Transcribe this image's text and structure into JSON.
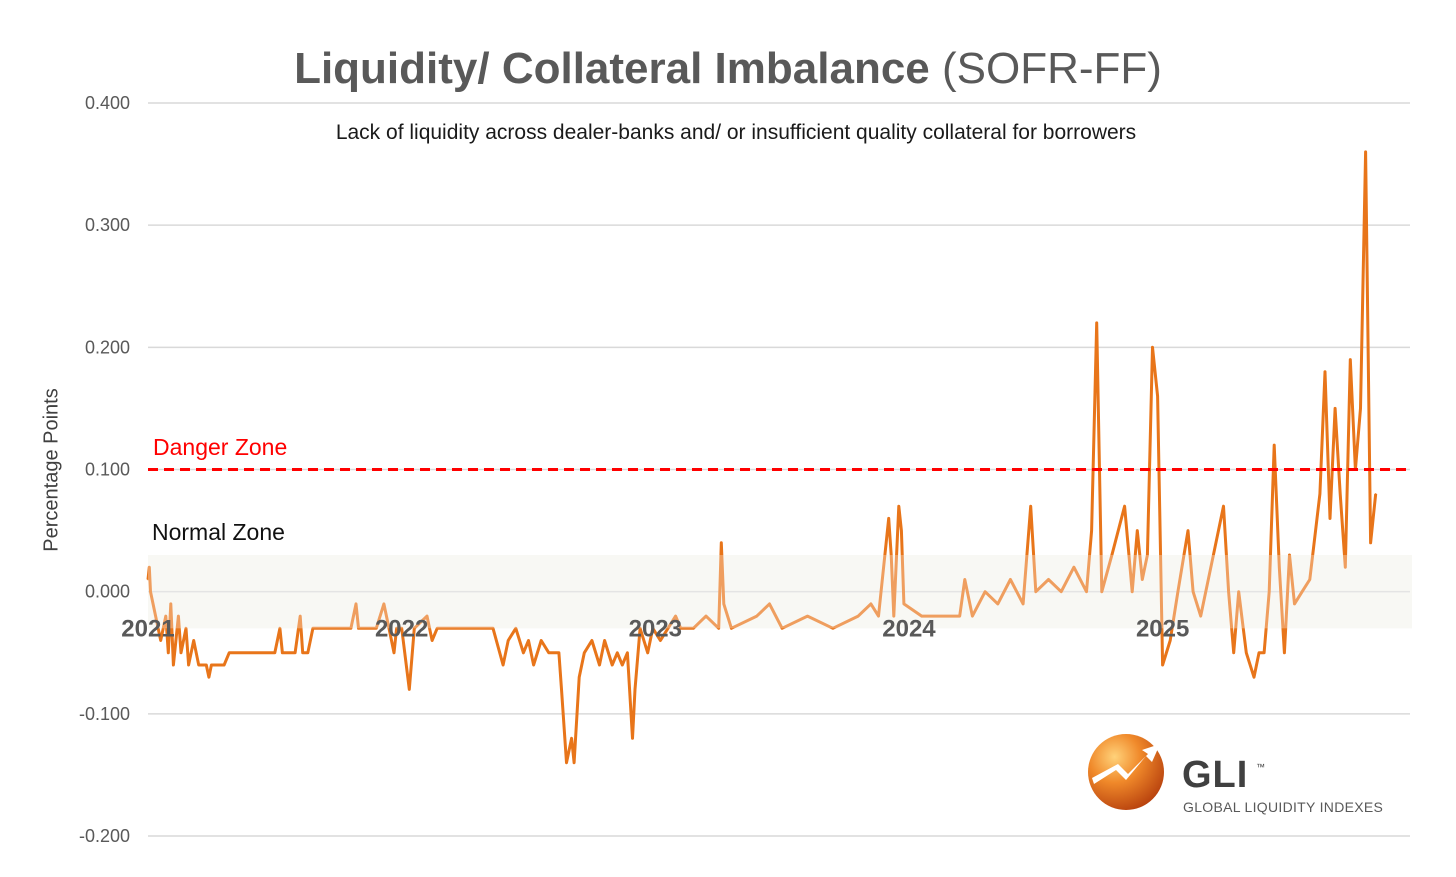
{
  "header": {
    "title_main": "Liquidity/ Collateral Imbalance",
    "title_suffix": "(SOFR-FF)",
    "subtitle": "Lack of liquidity across dealer-banks and/ or insufficient quality collateral for borrowers"
  },
  "annotations": {
    "danger_label": "Danger Zone",
    "normal_label": "Normal Zone"
  },
  "logo": {
    "name": "GLI",
    "tm": "™",
    "tagline": "GLOBAL LIQUIDITY INDEXES"
  },
  "colors": {
    "line": "#e8751a",
    "line_light": "#efa766",
    "danger": "#ff0000",
    "normal_zone": "#f5f5ef",
    "grid": "#d9d9d9"
  },
  "chart_data": {
    "type": "line",
    "title": "Liquidity/ Collateral Imbalance (SOFR-FF)",
    "subtitle": "Lack of liquidity across dealer-banks and/ or insufficient quality collateral for borrowers",
    "xlabel": "",
    "ylabel": "Percentage Points",
    "ylim": [
      -0.2,
      0.4
    ],
    "xlim": [
      2021.0,
      2025.92
    ],
    "y_ticks": [
      "0.400",
      "0.300",
      "0.200",
      "0.100",
      "0.000",
      "-0.100",
      "-0.200"
    ],
    "y_tick_values": [
      0.4,
      0.3,
      0.2,
      0.1,
      0.0,
      -0.1,
      -0.2
    ],
    "x_ticks": [
      "2021",
      "2022",
      "2023",
      "2024",
      "2025"
    ],
    "x_tick_values": [
      2021,
      2022,
      2023,
      2024,
      2025
    ],
    "grid": true,
    "reference_lines": [
      {
        "label": "Danger Zone",
        "y": 0.1,
        "style": "dashed",
        "color": "#ff0000"
      }
    ],
    "bands": [
      {
        "label": "Normal Zone",
        "y_from": -0.03,
        "y_to": 0.03
      }
    ],
    "series": [
      {
        "name": "SOFR-FF",
        "points": [
          [
            2021.0,
            0.01
          ],
          [
            2021.005,
            0.02
          ],
          [
            2021.01,
            0.0
          ],
          [
            2021.03,
            -0.02
          ],
          [
            2021.05,
            -0.04
          ],
          [
            2021.07,
            -0.02
          ],
          [
            2021.08,
            -0.05
          ],
          [
            2021.09,
            -0.01
          ],
          [
            2021.1,
            -0.06
          ],
          [
            2021.12,
            -0.02
          ],
          [
            2021.13,
            -0.05
          ],
          [
            2021.15,
            -0.03
          ],
          [
            2021.16,
            -0.06
          ],
          [
            2021.18,
            -0.04
          ],
          [
            2021.2,
            -0.06
          ],
          [
            2021.23,
            -0.06
          ],
          [
            2021.24,
            -0.07
          ],
          [
            2021.25,
            -0.06
          ],
          [
            2021.3,
            -0.06
          ],
          [
            2021.32,
            -0.05
          ],
          [
            2021.4,
            -0.05
          ],
          [
            2021.5,
            -0.05
          ],
          [
            2021.52,
            -0.03
          ],
          [
            2021.53,
            -0.05
          ],
          [
            2021.58,
            -0.05
          ],
          [
            2021.6,
            -0.02
          ],
          [
            2021.61,
            -0.05
          ],
          [
            2021.63,
            -0.05
          ],
          [
            2021.65,
            -0.03
          ],
          [
            2021.8,
            -0.03
          ],
          [
            2021.82,
            -0.01
          ],
          [
            2021.83,
            -0.03
          ],
          [
            2021.9,
            -0.03
          ],
          [
            2021.93,
            -0.01
          ],
          [
            2021.95,
            -0.03
          ],
          [
            2021.97,
            -0.05
          ],
          [
            2021.98,
            -0.03
          ],
          [
            2022.0,
            -0.03
          ],
          [
            2022.03,
            -0.08
          ],
          [
            2022.05,
            -0.03
          ],
          [
            2022.1,
            -0.02
          ],
          [
            2022.12,
            -0.04
          ],
          [
            2022.14,
            -0.03
          ],
          [
            2022.3,
            -0.03
          ],
          [
            2022.36,
            -0.03
          ],
          [
            2022.4,
            -0.06
          ],
          [
            2022.42,
            -0.04
          ],
          [
            2022.45,
            -0.03
          ],
          [
            2022.48,
            -0.05
          ],
          [
            2022.5,
            -0.04
          ],
          [
            2022.52,
            -0.06
          ],
          [
            2022.55,
            -0.04
          ],
          [
            2022.58,
            -0.05
          ],
          [
            2022.62,
            -0.05
          ],
          [
            2022.63,
            -0.08
          ],
          [
            2022.65,
            -0.14
          ],
          [
            2022.67,
            -0.12
          ],
          [
            2022.68,
            -0.14
          ],
          [
            2022.7,
            -0.07
          ],
          [
            2022.72,
            -0.05
          ],
          [
            2022.75,
            -0.04
          ],
          [
            2022.78,
            -0.06
          ],
          [
            2022.8,
            -0.04
          ],
          [
            2022.83,
            -0.06
          ],
          [
            2022.85,
            -0.05
          ],
          [
            2022.87,
            -0.06
          ],
          [
            2022.89,
            -0.05
          ],
          [
            2022.91,
            -0.12
          ],
          [
            2022.92,
            -0.08
          ],
          [
            2022.94,
            -0.03
          ],
          [
            2022.97,
            -0.05
          ],
          [
            2022.99,
            -0.03
          ],
          [
            2023.02,
            -0.04
          ],
          [
            2023.05,
            -0.03
          ],
          [
            2023.08,
            -0.02
          ],
          [
            2023.1,
            -0.03
          ],
          [
            2023.15,
            -0.03
          ],
          [
            2023.2,
            -0.02
          ],
          [
            2023.25,
            -0.03
          ],
          [
            2023.26,
            0.04
          ],
          [
            2023.27,
            -0.01
          ],
          [
            2023.3,
            -0.03
          ],
          [
            2023.4,
            -0.02
          ],
          [
            2023.45,
            -0.01
          ],
          [
            2023.5,
            -0.03
          ],
          [
            2023.6,
            -0.02
          ],
          [
            2023.7,
            -0.03
          ],
          [
            2023.8,
            -0.02
          ],
          [
            2023.85,
            -0.01
          ],
          [
            2023.88,
            -0.02
          ],
          [
            2023.92,
            0.06
          ],
          [
            2023.93,
            0.03
          ],
          [
            2023.94,
            -0.02
          ],
          [
            2023.96,
            0.07
          ],
          [
            2023.97,
            0.05
          ],
          [
            2023.98,
            -0.01
          ],
          [
            2024.05,
            -0.02
          ],
          [
            2024.1,
            -0.02
          ],
          [
            2024.2,
            -0.02
          ],
          [
            2024.22,
            0.01
          ],
          [
            2024.25,
            -0.02
          ],
          [
            2024.3,
            0.0
          ],
          [
            2024.35,
            -0.01
          ],
          [
            2024.4,
            0.01
          ],
          [
            2024.45,
            -0.01
          ],
          [
            2024.48,
            0.07
          ],
          [
            2024.5,
            0.0
          ],
          [
            2024.55,
            0.01
          ],
          [
            2024.6,
            0.0
          ],
          [
            2024.65,
            0.02
          ],
          [
            2024.7,
            0.0
          ],
          [
            2024.72,
            0.05
          ],
          [
            2024.74,
            0.22
          ],
          [
            2024.76,
            0.0
          ],
          [
            2024.8,
            0.03
          ],
          [
            2024.85,
            0.07
          ],
          [
            2024.88,
            0.0
          ],
          [
            2024.9,
            0.05
          ],
          [
            2024.92,
            0.01
          ],
          [
            2024.94,
            0.03
          ],
          [
            2024.96,
            0.2
          ],
          [
            2024.98,
            0.16
          ],
          [
            2025.0,
            -0.06
          ],
          [
            2025.03,
            -0.04
          ],
          [
            2025.06,
            0.0
          ],
          [
            2025.1,
            0.05
          ],
          [
            2025.12,
            0.0
          ],
          [
            2025.15,
            -0.02
          ],
          [
            2025.2,
            0.03
          ],
          [
            2025.24,
            0.07
          ],
          [
            2025.26,
            0.0
          ],
          [
            2025.28,
            -0.05
          ],
          [
            2025.3,
            0.0
          ],
          [
            2025.33,
            -0.05
          ],
          [
            2025.36,
            -0.07
          ],
          [
            2025.38,
            -0.05
          ],
          [
            2025.4,
            -0.05
          ],
          [
            2025.42,
            0.0
          ],
          [
            2025.44,
            0.12
          ],
          [
            2025.46,
            0.02
          ],
          [
            2025.48,
            -0.05
          ],
          [
            2025.5,
            0.03
          ],
          [
            2025.52,
            -0.01
          ],
          [
            2025.55,
            0.0
          ],
          [
            2025.58,
            0.01
          ],
          [
            2025.62,
            0.08
          ],
          [
            2025.64,
            0.18
          ],
          [
            2025.66,
            0.06
          ],
          [
            2025.68,
            0.15
          ],
          [
            2025.7,
            0.08
          ],
          [
            2025.72,
            0.02
          ],
          [
            2025.74,
            0.19
          ],
          [
            2025.76,
            0.1
          ],
          [
            2025.78,
            0.15
          ],
          [
            2025.8,
            0.36
          ],
          [
            2025.81,
            0.2
          ],
          [
            2025.82,
            0.04
          ],
          [
            2025.84,
            0.08
          ]
        ]
      }
    ]
  }
}
